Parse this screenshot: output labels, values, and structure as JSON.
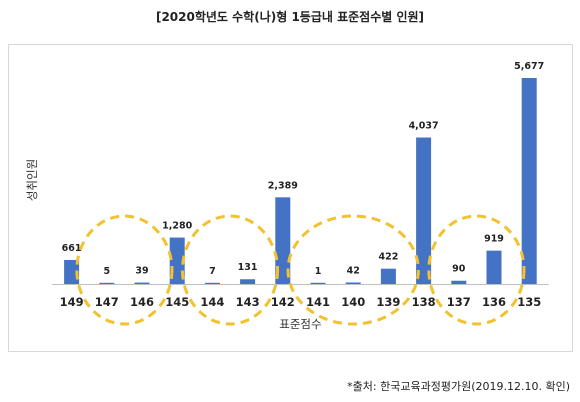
{
  "chart_data": {
    "type": "bar",
    "title": "[2020학년도 수학(나)형 1등급내 표준점수별 인원]",
    "xlabel": "표준점수",
    "ylabel": "성취인원",
    "categories": [
      "149",
      "147",
      "146",
      "145",
      "144",
      "143",
      "142",
      "141",
      "140",
      "139",
      "138",
      "137",
      "136",
      "135"
    ],
    "values": [
      661,
      5,
      39,
      1280,
      7,
      131,
      2389,
      1,
      42,
      422,
      4037,
      90,
      919,
      5677
    ],
    "value_labels": [
      "661",
      "5",
      "39",
      "1,280",
      "7",
      "131",
      "2,389",
      "1",
      "42",
      "422",
      "4,037",
      "90",
      "919",
      "5,677"
    ],
    "ylim": [
      0,
      6000
    ],
    "grid": false,
    "bar_color": "#4472C4",
    "highlight_color": "#F2C12E",
    "highlight_groups": [
      [
        "147",
        "146"
      ],
      [
        "144",
        "143"
      ],
      [
        "141",
        "140",
        "139"
      ],
      [
        "137",
        "136"
      ]
    ]
  },
  "source": "*출처: 한국교육과정평가원(2019.12.10. 확인)"
}
